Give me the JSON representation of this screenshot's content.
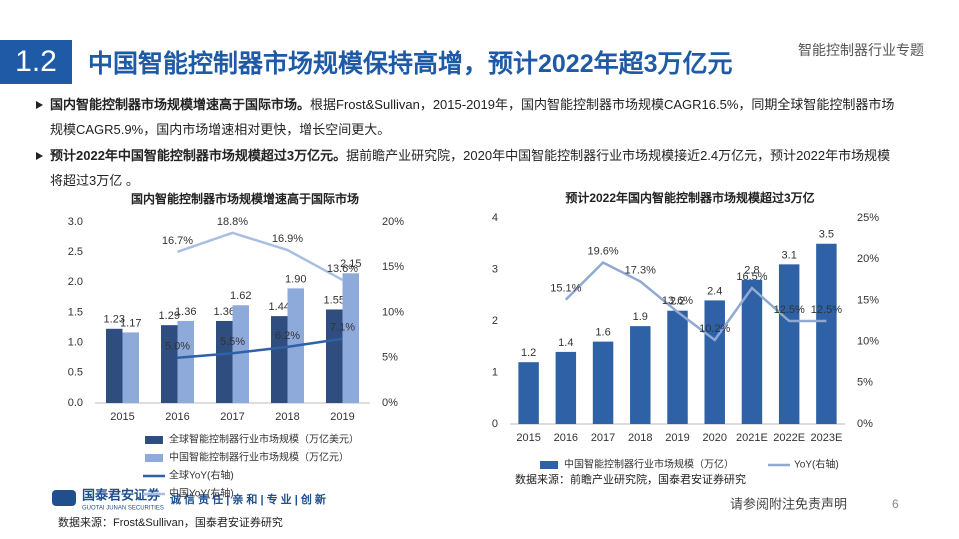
{
  "header": {
    "number": "1.2",
    "title": "中国智能控制器市场规模保持高增，预计2022年超3万亿元",
    "tag": "智能控制器行业专题"
  },
  "bullets": [
    {
      "bold": "国内智能控制器市场规模增速高于国际市场。",
      "text": "根据Frost&Sullivan，2015-2019年，国内智能控制器市场规模CAGR16.5%，同期全球智能控制器市场规模CAGR5.9%，国内市场增速相对更快，增长空间更大。"
    },
    {
      "bold": "预计2022年中国智能控制器市场规模超过3万亿元。",
      "text": "据前瞻产业研究院，2020年中国智能控制器行业市场规模接近2.4万亿元，预计2022年市场规模将超过3万亿 。"
    }
  ],
  "chart_data": [
    {
      "type": "bar",
      "title": "国内智能控制器市场规模增速高于国际市场",
      "categories": [
        "2015",
        "2016",
        "2017",
        "2018",
        "2019"
      ],
      "series": [
        {
          "name": "全球智能控制器行业市场规模（万亿美元）",
          "color": "#2f4d7e",
          "values": [
            1.23,
            1.29,
            1.36,
            1.44,
            1.55
          ],
          "value_labels": [
            "1.23",
            "1.29",
            "1.36",
            "1.44",
            "1.55"
          ]
        },
        {
          "name": "中国智能控制器行业市场规模（万亿元）",
          "color": "#8eaadb",
          "values": [
            1.17,
            1.36,
            1.62,
            1.9,
            2.15
          ],
          "value_labels": [
            "1.17",
            "1.36",
            "1.62",
            "1.90",
            "2.15"
          ]
        },
        {
          "name": "全球YoY(右轴)",
          "type": "line",
          "axis": "y2",
          "color": "#2e61a5",
          "values": [
            null,
            5.0,
            5.5,
            6.2,
            7.1
          ],
          "value_labels": [
            null,
            "5.0%",
            "5.5%",
            "6.2%",
            "7.1%"
          ]
        },
        {
          "name": "中国YoY(右轴)",
          "type": "line",
          "axis": "y2",
          "color": "#a9bfe2",
          "values": [
            null,
            16.7,
            18.8,
            16.9,
            13.6
          ],
          "value_labels": [
            null,
            "16.7%",
            "18.8%",
            "16.9%",
            "13.6%"
          ]
        }
      ],
      "ylim": [
        0,
        3
      ],
      "yticks": [
        {
          "value": 0,
          "label": "0.0"
        },
        0.5,
        {
          "value": 1,
          "label": "1.0"
        },
        1.5,
        {
          "value": 2,
          "label": "2.0"
        },
        2.5,
        {
          "value": 3,
          "label": "3.0"
        }
      ],
      "y2lim": [
        0,
        20
      ],
      "y2ticks": [
        {
          "value": 0,
          "label": "0%"
        },
        {
          "value": 5,
          "label": "5%"
        },
        {
          "value": 10,
          "label": "10%"
        },
        {
          "value": 15,
          "label": "15%"
        },
        {
          "value": 20,
          "label": "20%"
        }
      ],
      "source": "数据来源：Frost&Sullivan，国泰君安证券研究"
    },
    {
      "type": "bar",
      "title": "预计2022年国内智能控制器市场规模超过3万亿",
      "categories": [
        "2015",
        "2016",
        "2017",
        "2018",
        "2019",
        "2020",
        "2021E",
        "2022E",
        "2023E"
      ],
      "series": [
        {
          "name": "中国智能控制器行业市场规模（万亿）",
          "color": "#2e61a5",
          "values": [
            1.2,
            1.4,
            1.6,
            1.9,
            2.2,
            2.4,
            2.8,
            3.1,
            3.5
          ]
        },
        {
          "name": "YoY(右轴)",
          "type": "line",
          "axis": "y2",
          "color": "#8fa9d3",
          "values": [
            null,
            15.1,
            19.6,
            17.3,
            13.6,
            10.2,
            16.5,
            12.5,
            12.5
          ],
          "value_labels": [
            null,
            "15.1%",
            "19.6%",
            "17.3%",
            "13.6%",
            "10.2%",
            "16.5%",
            "12.5%",
            "12.5%"
          ]
        }
      ],
      "ylim": [
        0,
        4
      ],
      "yticks": [
        0,
        1,
        2,
        3,
        4
      ],
      "y2lim": [
        0,
        25
      ],
      "y2ticks": [
        {
          "value": 0,
          "label": "0%"
        },
        {
          "value": 5,
          "label": "5%"
        },
        {
          "value": 10,
          "label": "10%"
        },
        {
          "value": 15,
          "label": "15%"
        },
        {
          "value": 20,
          "label": "20%"
        },
        {
          "value": 25,
          "label": "25%"
        }
      ],
      "source": "数据来源：前瞻产业研究院，国泰君安证券研究"
    }
  ],
  "footer": {
    "logo": "国泰君安证券",
    "logo_en": "GUOTAI JUNAN SECURITIES",
    "slogan": "诚 信 责 任 | 亲 和 | 专 业 | 创 新",
    "disclaimer": "请参阅附注免责声明",
    "page": "6"
  }
}
